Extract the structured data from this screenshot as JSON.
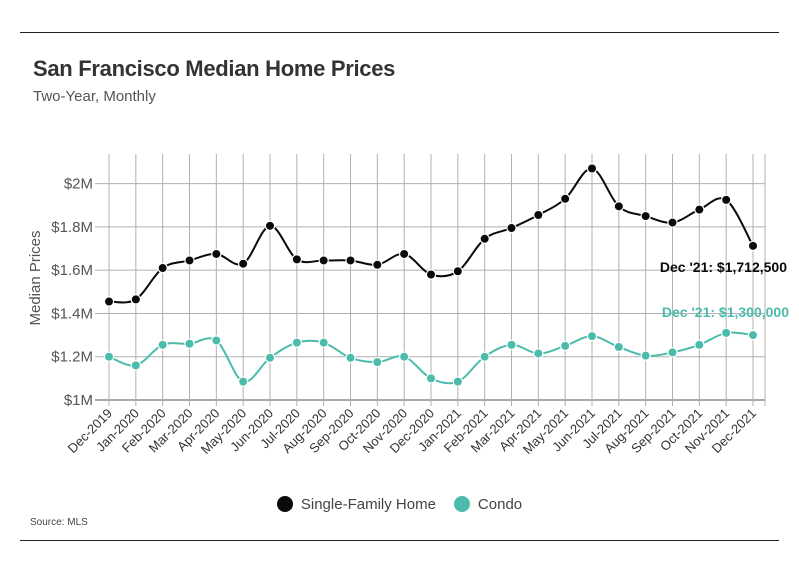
{
  "header": {
    "title": "San Francisco Median Home Prices",
    "subtitle": "Two-Year, Monthly"
  },
  "footer": {
    "source": "Source:  MLS"
  },
  "colors": {
    "single_family": "#0a0a0a",
    "condo": "#4bbcab",
    "grid": "#b0b0b0"
  },
  "chart_data": {
    "type": "line",
    "title": "San Francisco Median Home Prices",
    "subtitle": "Two-Year, Monthly",
    "xlabel": "",
    "ylabel": "Median Prices",
    "ylim": [
      1000000,
      2100000
    ],
    "yticks": [
      {
        "value": 1000000,
        "label": "$1M"
      },
      {
        "value": 1200000,
        "label": "$1.2M"
      },
      {
        "value": 1400000,
        "label": "$1.4M"
      },
      {
        "value": 1600000,
        "label": "$1.6M"
      },
      {
        "value": 1800000,
        "label": "$1.8M"
      },
      {
        "value": 2000000,
        "label": "$2M"
      }
    ],
    "grid": true,
    "legend_position": "bottom-center",
    "categories": [
      "Dec-2019",
      "Jan-2020",
      "Feb-2020",
      "Mar-2020",
      "Apr-2020",
      "May-2020",
      "Jun-2020",
      "Jul-2020",
      "Aug-2020",
      "Sep-2020",
      "Oct-2020",
      "Nov-2020",
      "Dec-2020",
      "Jan-2021",
      "Feb-2021",
      "Mar-2021",
      "Apr-2021",
      "May-2021",
      "Jun-2021",
      "Jul-2021",
      "Aug-2021",
      "Sep-2021",
      "Oct-2021",
      "Nov-2021",
      "Dec-2021"
    ],
    "series": [
      {
        "name": "Single-Family Home",
        "color": "#0a0a0a",
        "values": [
          1455000,
          1465000,
          1610000,
          1645000,
          1675000,
          1630000,
          1805000,
          1650000,
          1645000,
          1645000,
          1625000,
          1675000,
          1580000,
          1595000,
          1745000,
          1795000,
          1855000,
          1930000,
          2070000,
          1895000,
          1850000,
          1820000,
          1880000,
          1925000,
          1712500
        ],
        "callout": "Dec '21: $1,712,500"
      },
      {
        "name": "Condo",
        "color": "#4bbcab",
        "values": [
          1200000,
          1160000,
          1255000,
          1260000,
          1275000,
          1085000,
          1195000,
          1265000,
          1265000,
          1195000,
          1175000,
          1200000,
          1100000,
          1085000,
          1200000,
          1255000,
          1215000,
          1250000,
          1295000,
          1245000,
          1205000,
          1220000,
          1255000,
          1310000,
          1300000
        ],
        "callout": "Dec '21: $1,300,000"
      }
    ]
  }
}
